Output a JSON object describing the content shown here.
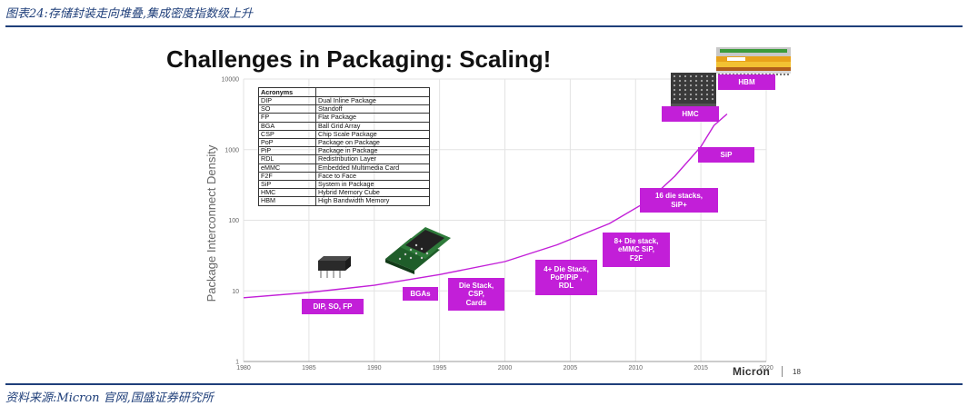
{
  "caption": "图表24:存储封装走向堆叠,集成密度指数级上升",
  "source": "资料来源:Micron 官网,国盛证券研究所",
  "slide": {
    "title": "Challenges in Packaging: Scaling!",
    "brand": "Micron",
    "page_number": "18"
  },
  "acronyms": {
    "header": "Acronyms",
    "rows": [
      [
        "DIP",
        "Dual Inline Package"
      ],
      [
        "SO",
        "Standoff"
      ],
      [
        "FP",
        "Flat Package"
      ],
      [
        "BGA",
        "Ball Grid Array"
      ],
      [
        "CSP",
        "Chip Scale Package"
      ],
      [
        "PoP",
        "Package on Package"
      ],
      [
        "PiP",
        "Package in Package"
      ],
      [
        "RDL",
        "Redistribution Layer"
      ],
      [
        "eMMC",
        "Embedded Multimedia Card"
      ],
      [
        "F2F",
        "Face to Face"
      ],
      [
        "SiP",
        "System in Package"
      ],
      [
        "HMC",
        "Hybrid Memory Cube"
      ],
      [
        "HBM",
        "High Bandwidth Memory"
      ]
    ]
  },
  "chart_data": {
    "type": "line",
    "title": "Challenges in Packaging: Scaling!",
    "xlabel": "",
    "ylabel": "Package Interconnect Density",
    "yscale": "log",
    "xlim": [
      1980,
      2020
    ],
    "ylim": [
      1,
      10000
    ],
    "x_ticks": [
      "1980",
      "1985",
      "1990",
      "1995",
      "2000",
      "2005",
      "2010",
      "2015",
      "2020"
    ],
    "y_ticks": [
      "1",
      "10",
      "100",
      "1000",
      "10000"
    ],
    "grid": true,
    "series": [
      {
        "color": "#c21fd8",
        "x": [
          1980,
          1985,
          1990,
          1995,
          2000,
          2004,
          2008,
          2011,
          2013,
          2015,
          2016,
          2017
        ],
        "y": [
          8,
          9.5,
          12,
          17,
          26,
          45,
          90,
          190,
          420,
          1100,
          2200,
          3200
        ]
      }
    ],
    "annotations": [
      {
        "text": "DIP, SO, FP",
        "x": 1987
      },
      {
        "text": "BGAs",
        "x": 1994
      },
      {
        "text": "Die Stack,\nCSP,\nCards",
        "x": 1999
      },
      {
        "text": "4+ Die Stack,\nPoP/PiP ,\nRDL",
        "x": 2005
      },
      {
        "text": "8+ Die stack,\neMMC SiP,\nF2F",
        "x": 2010
      },
      {
        "text": "16 die stacks,\nSiP+",
        "x": 2015
      },
      {
        "text": "SiP",
        "x": 2018
      },
      {
        "text": "HMC",
        "x": 2016
      },
      {
        "text": "HBM",
        "x": 2019
      }
    ]
  }
}
